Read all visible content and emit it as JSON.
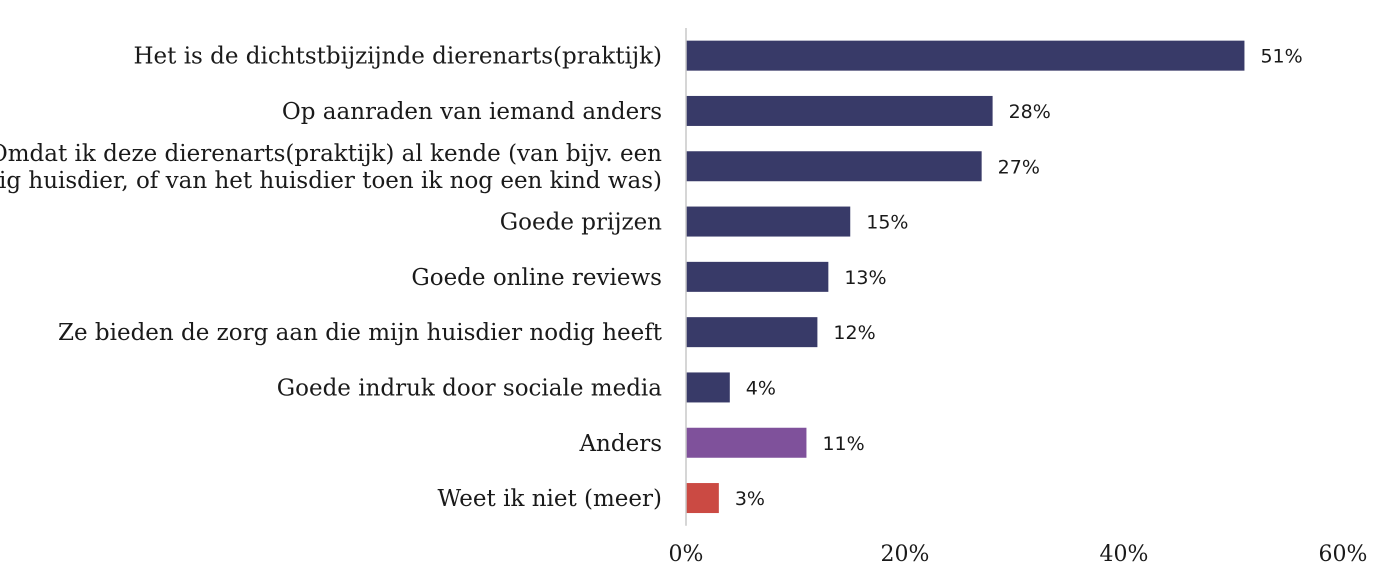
{
  "chart_data": {
    "type": "bar",
    "orientation": "horizontal",
    "categories": [
      [
        "Het is de dichtstbijzijnde dierenarts(praktijk)"
      ],
      [
        "Op aanraden van iemand anders"
      ],
      [
        "Omdat ik deze dierenarts(praktijk) al kende (van bijv. een",
        "vorig huisdier, of van het huisdier toen ik nog een kind was)"
      ],
      [
        "Goede prijzen"
      ],
      [
        "Goede online reviews"
      ],
      [
        "Ze bieden de zorg aan die mijn huisdier nodig heeft"
      ],
      [
        "Goede indruk door sociale media"
      ],
      [
        "Anders"
      ],
      [
        "Weet ik niet (meer)"
      ]
    ],
    "values": [
      51,
      28,
      27,
      15,
      13,
      12,
      4,
      11,
      3
    ],
    "value_labels": [
      "51%",
      "28%",
      "27%",
      "15%",
      "13%",
      "12%",
      "4%",
      "11%",
      "3%"
    ],
    "bar_colors": [
      "#383a68",
      "#383a68",
      "#383a68",
      "#383a68",
      "#383a68",
      "#383a68",
      "#383a68",
      "#7f519b",
      "#cb4a43"
    ],
    "xlim": [
      0,
      60
    ],
    "x_ticks": [
      0,
      20,
      40,
      60
    ],
    "x_tick_labels": [
      "0%",
      "20%",
      "40%",
      "60%"
    ],
    "grid": false,
    "legend": "none",
    "title": "",
    "xlabel": "",
    "ylabel": ""
  }
}
